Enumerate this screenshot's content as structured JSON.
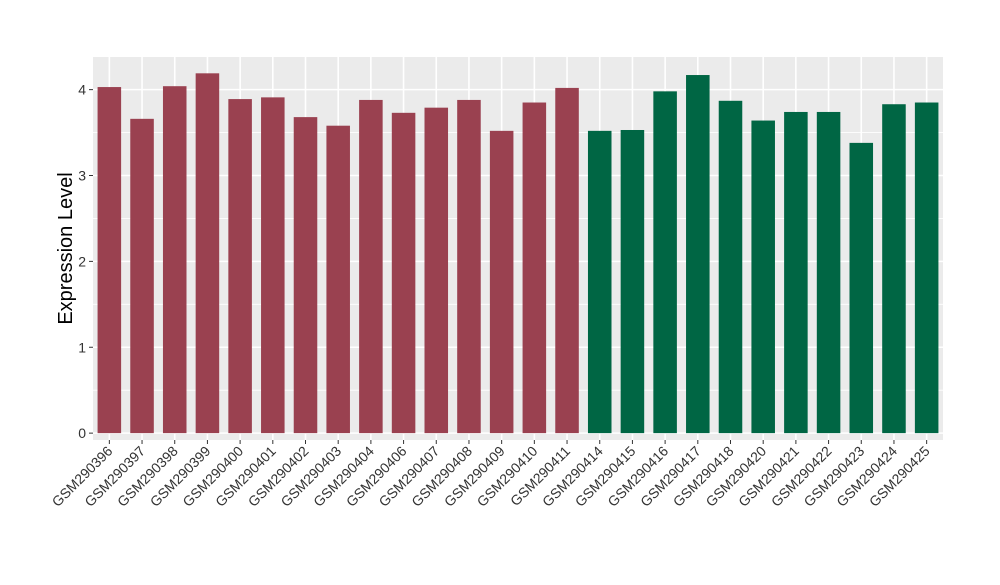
{
  "chart_data": {
    "type": "bar",
    "title": "",
    "xlabel": "",
    "ylabel": "Expression Level",
    "ylim": [
      -0.08,
      4.38
    ],
    "yticks": [
      0,
      1,
      2,
      3,
      4
    ],
    "grid": true,
    "legend": "none",
    "categories": [
      "GSM290396",
      "GSM290397",
      "GSM290398",
      "GSM290399",
      "GSM290400",
      "GSM290401",
      "GSM290402",
      "GSM290403",
      "GSM290404",
      "GSM290406",
      "GSM290407",
      "GSM290408",
      "GSM290409",
      "GSM290410",
      "GSM290411",
      "GSM290414",
      "GSM290415",
      "GSM290416",
      "GSM290417",
      "GSM290418",
      "GSM290420",
      "GSM290421",
      "GSM290422",
      "GSM290423",
      "GSM290424",
      "GSM290425"
    ],
    "values": [
      4.03,
      3.66,
      4.04,
      4.19,
      3.89,
      3.91,
      3.68,
      3.58,
      3.88,
      3.73,
      3.79,
      3.88,
      3.52,
      3.85,
      4.02,
      3.52,
      3.53,
      3.98,
      4.17,
      3.87,
      3.64,
      3.74,
      3.74,
      3.38,
      3.83,
      3.85
    ],
    "groups": [
      "a",
      "a",
      "a",
      "a",
      "a",
      "a",
      "a",
      "a",
      "a",
      "a",
      "a",
      "a",
      "a",
      "a",
      "a",
      "b",
      "b",
      "b",
      "b",
      "b",
      "b",
      "b",
      "b",
      "b",
      "b",
      "b"
    ],
    "group_colors": {
      "a": "#9a4150",
      "b": "#006644"
    },
    "panel_background": "#ebebeb",
    "gridline_color": "#ffffff"
  }
}
